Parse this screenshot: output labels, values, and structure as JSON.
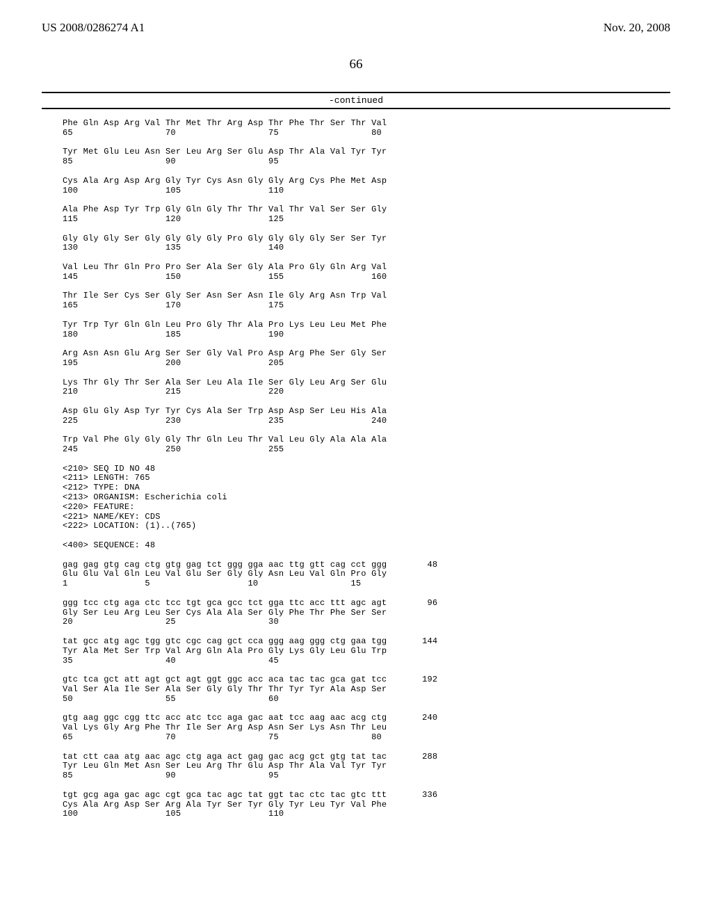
{
  "header": {
    "pub_number": "US 2008/0286274 A1",
    "date": "Nov. 20, 2008"
  },
  "page_number": "66",
  "continued_label": "-continued",
  "protein_rows": [
    {
      "aa": "Phe Gln Asp Arg Val Thr Met Thr Arg Asp Thr Phe Thr Ser Thr Val",
      "nums": "65                  70                  75                  80"
    },
    {
      "aa": "Tyr Met Glu Leu Asn Ser Leu Arg Ser Glu Asp Thr Ala Val Tyr Tyr",
      "nums": "85                  90                  95"
    },
    {
      "aa": "Cys Ala Arg Asp Arg Gly Tyr Cys Asn Gly Gly Arg Cys Phe Met Asp",
      "nums": "100                 105                 110"
    },
    {
      "aa": "Ala Phe Asp Tyr Trp Gly Gln Gly Thr Thr Val Thr Val Ser Ser Gly",
      "nums": "115                 120                 125"
    },
    {
      "aa": "Gly Gly Gly Ser Gly Gly Gly Gly Pro Gly Gly Gly Gly Ser Ser Tyr",
      "nums": "130                 135                 140"
    },
    {
      "aa": "Val Leu Thr Gln Pro Pro Ser Ala Ser Gly Ala Pro Gly Gln Arg Val",
      "nums": "145                 150                 155                 160"
    },
    {
      "aa": "Thr Ile Ser Cys Ser Gly Ser Asn Ser Asn Ile Gly Arg Asn Trp Val",
      "nums": "165                 170                 175"
    },
    {
      "aa": "Tyr Trp Tyr Gln Gln Leu Pro Gly Thr Ala Pro Lys Leu Leu Met Phe",
      "nums": "180                 185                 190"
    },
    {
      "aa": "Arg Asn Asn Glu Arg Ser Ser Gly Val Pro Asp Arg Phe Ser Gly Ser",
      "nums": "195                 200                 205"
    },
    {
      "aa": "Lys Thr Gly Thr Ser Ala Ser Leu Ala Ile Ser Gly Leu Arg Ser Glu",
      "nums": "210                 215                 220"
    },
    {
      "aa": "Asp Glu Gly Asp Tyr Tyr Cys Ala Ser Trp Asp Asp Ser Leu His Ala",
      "nums": "225                 230                 235                 240"
    },
    {
      "aa": "Trp Val Phe Gly Gly Gly Thr Gln Leu Thr Val Leu Gly Ala Ala Ala",
      "nums": "245                 250                 255"
    }
  ],
  "metadata": [
    "<210> SEQ ID NO 48",
    "<211> LENGTH: 765",
    "<212> TYPE: DNA",
    "<213> ORGANISM: Escherichia coli",
    "<220> FEATURE:",
    "<221> NAME/KEY: CDS",
    "<222> LOCATION: (1)..(765)"
  ],
  "sequence_label": "<400> SEQUENCE: 48",
  "dna_rows": [
    {
      "l1": "gag gag gtg cag ctg gtg gag tct ggg gga aac ttg gtt cag cct ggg",
      "l2": "Glu Glu Val Gln Leu Val Glu Ser Gly Gly Asn Leu Val Gln Pro Gly",
      "l3": "1               5                   10                  15",
      "end": "48"
    },
    {
      "l1": "ggg tcc ctg aga ctc tcc tgt gca gcc tct gga ttc acc ttt agc agt",
      "l2": "Gly Ser Leu Arg Leu Ser Cys Ala Ala Ser Gly Phe Thr Phe Ser Ser",
      "l3": "20                  25                  30",
      "end": "96"
    },
    {
      "l1": "tat gcc atg agc tgg gtc cgc cag gct cca ggg aag ggg ctg gaa tgg",
      "l2": "Tyr Ala Met Ser Trp Val Arg Gln Ala Pro Gly Lys Gly Leu Glu Trp",
      "l3": "35                  40                  45",
      "end": "144"
    },
    {
      "l1": "gtc tca gct att agt gct agt ggt ggc acc aca tac tac gca gat tcc",
      "l2": "Val Ser Ala Ile Ser Ala Ser Gly Gly Thr Thr Tyr Tyr Ala Asp Ser",
      "l3": "50                  55                  60",
      "end": "192"
    },
    {
      "l1": "gtg aag ggc cgg ttc acc atc tcc aga gac aat tcc aag aac acg ctg",
      "l2": "Val Lys Gly Arg Phe Thr Ile Ser Arg Asp Asn Ser Lys Asn Thr Leu",
      "l3": "65                  70                  75                  80",
      "end": "240"
    },
    {
      "l1": "tat ctt caa atg aac agc ctg aga act gag gac acg gct gtg tat tac",
      "l2": "Tyr Leu Gln Met Asn Ser Leu Arg Thr Glu Asp Thr Ala Val Tyr Tyr",
      "l3": "85                  90                  95",
      "end": "288"
    },
    {
      "l1": "tgt gcg aga gac agc cgt gca tac agc tat ggt tac ctc tac gtc ttt",
      "l2": "Cys Ala Arg Asp Ser Arg Ala Tyr Ser Tyr Gly Tyr Leu Tyr Val Phe",
      "l3": "100                 105                 110",
      "end": "336"
    }
  ]
}
